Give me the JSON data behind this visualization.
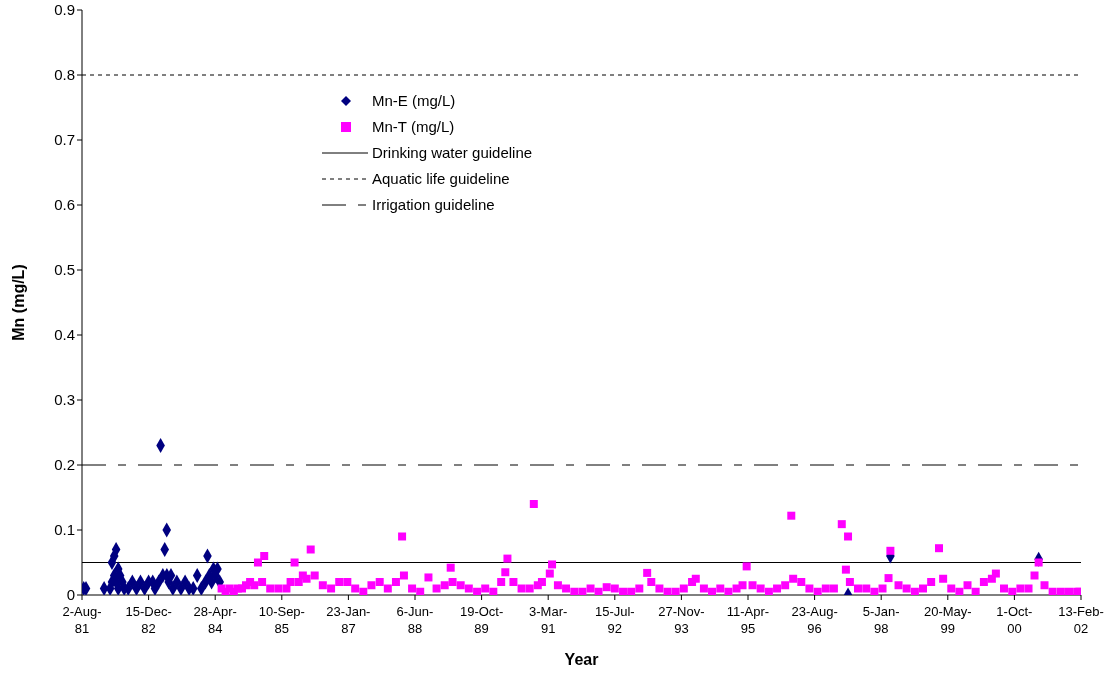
{
  "chart_data": {
    "type": "scatter",
    "xlabel": "Year",
    "ylabel": "Mn (mg/L)",
    "xlim": [
      "1981-08-02",
      "2002-02-13"
    ],
    "xticks": [
      {
        "value": "1981-08-02",
        "label": "2-Aug-81"
      },
      {
        "value": "1982-12-15",
        "label": "15-Dec-82"
      },
      {
        "value": "1984-04-28",
        "label": "28-Apr-84"
      },
      {
        "value": "1985-09-10",
        "label": "10-Sep-85"
      },
      {
        "value": "1987-01-23",
        "label": "23-Jan-87"
      },
      {
        "value": "1988-06-06",
        "label": "6-Jun-88"
      },
      {
        "value": "1989-10-19",
        "label": "19-Oct-89"
      },
      {
        "value": "1991-03-03",
        "label": "3-Mar-91"
      },
      {
        "value": "1992-07-15",
        "label": "15-Jul-92"
      },
      {
        "value": "1993-11-27",
        "label": "27-Nov-93"
      },
      {
        "value": "1995-04-11",
        "label": "11-Apr-95"
      },
      {
        "value": "1996-08-23",
        "label": "23-Aug-96"
      },
      {
        "value": "1998-01-05",
        "label": "5-Jan-98"
      },
      {
        "value": "1999-05-20",
        "label": "20-May-99"
      },
      {
        "value": "2000-10-01",
        "label": "1-Oct-00"
      },
      {
        "value": "2002-02-13",
        "label": "13-Feb-02"
      }
    ],
    "ylim": [
      0,
      0.9
    ],
    "yticks": [
      0,
      0.1,
      0.2,
      0.3,
      0.4,
      0.5,
      0.6,
      0.7,
      0.8,
      0.9
    ],
    "grid": false,
    "legend": "top left",
    "series": [
      {
        "name": "Mn-E (mg/L)",
        "color": "#000080",
        "marker": "diamond",
        "x": [
          "1981-08-15",
          "1981-09-01",
          "1982-01-15",
          "1982-03-01",
          "1982-03-15",
          "1982-03-15",
          "1982-04-01",
          "1982-04-15",
          "1982-04-01",
          "1982-04-15",
          "1982-05-01",
          "1982-05-01",
          "1982-05-15",
          "1982-06-01",
          "1982-06-15",
          "1982-07-15",
          "1982-08-15",
          "1982-09-15",
          "1982-10-15",
          "1982-11-15",
          "1982-12-15",
          "1983-01-15",
          "1983-02-01",
          "1983-03-01",
          "1983-03-15",
          "1983-04-01",
          "1983-04-15",
          "1983-04-30",
          "1983-05-01",
          "1983-05-15",
          "1983-06-01",
          "1983-06-15",
          "1983-07-15",
          "1983-08-15",
          "1983-09-15",
          "1983-10-15",
          "1983-11-15",
          "1983-12-15",
          "1984-01-15",
          "1984-02-15",
          "1984-03-01",
          "1984-03-15",
          "1984-04-01",
          "1984-04-15",
          "1984-05-01",
          "1984-05-15",
          "1984-06-01",
          "1997-05-01",
          "1998-03-15",
          "2001-04-01"
        ],
        "values": [
          0.01,
          0.01,
          0.01,
          0.01,
          0.02,
          0.05,
          0.06,
          0.07,
          0.03,
          0.02,
          0.04,
          0.01,
          0.03,
          0.02,
          0.01,
          0.01,
          0.02,
          0.01,
          0.02,
          0.01,
          0.02,
          0.02,
          0.01,
          0.02,
          0.23,
          0.03,
          0.07,
          0.1,
          0.03,
          0.02,
          0.03,
          0.01,
          0.02,
          0.01,
          0.02,
          0.01,
          0.01,
          0.03,
          0.01,
          0.02,
          0.06,
          0.03,
          0.02,
          0.04,
          0.03,
          0.04,
          0.02,
          0,
          0.06,
          0.055
        ]
      },
      {
        "name": "Mn-T (mg/L)",
        "color": "#ff00ff",
        "marker": "square",
        "x": [
          "1984-06-15",
          "1984-07-15",
          "1984-08-15",
          "1984-09-15",
          "1984-10-15",
          "1984-11-15",
          "1984-12-15",
          "1985-01-15",
          "1985-02-15",
          "1985-03-15",
          "1985-04-15",
          "1985-05-01",
          "1985-06-15",
          "1985-08-15",
          "1985-10-15",
          "1985-11-15",
          "1985-12-15",
          "1986-01-15",
          "1986-02-15",
          "1986-03-15",
          "1986-04-15",
          "1986-05-15",
          "1986-07-15",
          "1986-09-15",
          "1986-11-15",
          "1987-01-15",
          "1987-03-15",
          "1987-05-15",
          "1987-07-15",
          "1987-09-15",
          "1987-11-15",
          "1988-01-15",
          "1988-03-01",
          "1988-03-15",
          "1988-05-15",
          "1988-07-15",
          "1988-09-15",
          "1988-11-15",
          "1989-01-15",
          "1989-03-01",
          "1989-03-15",
          "1989-05-15",
          "1989-07-15",
          "1989-09-15",
          "1989-11-15",
          "1990-01-15",
          "1990-03-15",
          "1990-04-15",
          "1990-05-01",
          "1990-06-15",
          "1990-08-15",
          "1990-10-15",
          "1990-11-15",
          "1990-12-15",
          "1991-01-15",
          "1991-03-15",
          "1991-04-01",
          "1991-05-15",
          "1991-07-15",
          "1991-09-15",
          "1991-11-15",
          "1992-01-15",
          "1992-03-15",
          "1992-05-15",
          "1992-07-15",
          "1992-09-15",
          "1992-11-15",
          "1993-01-15",
          "1993-03-15",
          "1993-04-15",
          "1993-06-15",
          "1993-08-15",
          "1993-10-15",
          "1993-12-15",
          "1994-02-15",
          "1994-03-15",
          "1994-05-15",
          "1994-07-15",
          "1994-09-15",
          "1994-11-15",
          "1995-01-15",
          "1995-03-01",
          "1995-04-01",
          "1995-05-15",
          "1995-07-15",
          "1995-09-15",
          "1995-11-15",
          "1996-01-15",
          "1996-03-01",
          "1996-03-15",
          "1996-05-15",
          "1996-07-15",
          "1996-09-15",
          "1996-11-15",
          "1997-01-15",
          "1997-03-15",
          "1997-04-15",
          "1997-05-01",
          "1997-05-15",
          "1997-07-15",
          "1997-09-15",
          "1997-11-15",
          "1998-01-15",
          "1998-03-01",
          "1998-03-15",
          "1998-05-15",
          "1998-07-15",
          "1998-09-15",
          "1998-11-15",
          "1999-01-15",
          "1999-03-15",
          "1999-04-15",
          "1999-06-15",
          "1999-08-15",
          "1999-10-15",
          "1999-12-15",
          "2000-02-15",
          "2000-04-15",
          "2000-05-15",
          "2000-07-15",
          "2000-09-15",
          "2000-11-15",
          "2001-01-15",
          "2001-03-01",
          "2001-04-01",
          "2001-05-15",
          "2001-07-15",
          "2001-09-15",
          "2001-11-15",
          "2002-01-15",
          "2002-02-01"
        ],
        "values": [
          0.01,
          0.005,
          0.01,
          0.005,
          0.01,
          0.01,
          0.015,
          0.02,
          0.015,
          0.05,
          0.02,
          0.06,
          0.01,
          0.01,
          0.01,
          0.02,
          0.05,
          0.02,
          0.03,
          0.025,
          0.07,
          0.03,
          0.015,
          0.01,
          0.02,
          0.02,
          0.01,
          0.005,
          0.015,
          0.02,
          0.01,
          0.02,
          0.09,
          0.03,
          0.01,
          0.005,
          0.027,
          0.01,
          0.015,
          0.042,
          0.02,
          0.015,
          0.01,
          0.005,
          0.01,
          0.005,
          0.02,
          0.035,
          0.056,
          0.02,
          0.01,
          0.01,
          0.14,
          0.015,
          0.02,
          0.033,
          0.047,
          0.015,
          0.01,
          0.005,
          0.005,
          0.01,
          0.005,
          0.012,
          0.01,
          0.005,
          0.005,
          0.01,
          0.034,
          0.02,
          0.01,
          0.005,
          0.005,
          0.01,
          0.02,
          0.025,
          0.01,
          0.005,
          0.01,
          0.005,
          0.01,
          0.015,
          0.044,
          0.015,
          0.01,
          0.005,
          0.01,
          0.015,
          0.122,
          0.025,
          0.02,
          0.01,
          0.005,
          0.01,
          0.01,
          0.109,
          0.039,
          0.09,
          0.02,
          0.01,
          0.01,
          0.005,
          0.01,
          0.026,
          0.068,
          0.015,
          0.01,
          0.005,
          0.01,
          0.02,
          0.072,
          0.025,
          0.01,
          0.005,
          0.015,
          0.005,
          0.02,
          0.025,
          0.033,
          0.01,
          0.005,
          0.01,
          0.01,
          0.03,
          0.05,
          0.015,
          0.005,
          0.005,
          0.005,
          0.005,
          0.005
        ]
      }
    ],
    "ref_lines": [
      {
        "axis": "y",
        "value": 0.05,
        "label": "Drinking water guideline",
        "color": "#000000",
        "line_style": "solid"
      },
      {
        "axis": "y",
        "value": 0.8,
        "label": "Aquatic life guideline",
        "color": "#000000",
        "line_style": "dashed"
      },
      {
        "axis": "y",
        "value": 0.2,
        "label": "Irrigation guideline",
        "color": "#000000",
        "line_style": "dashdot"
      }
    ]
  }
}
